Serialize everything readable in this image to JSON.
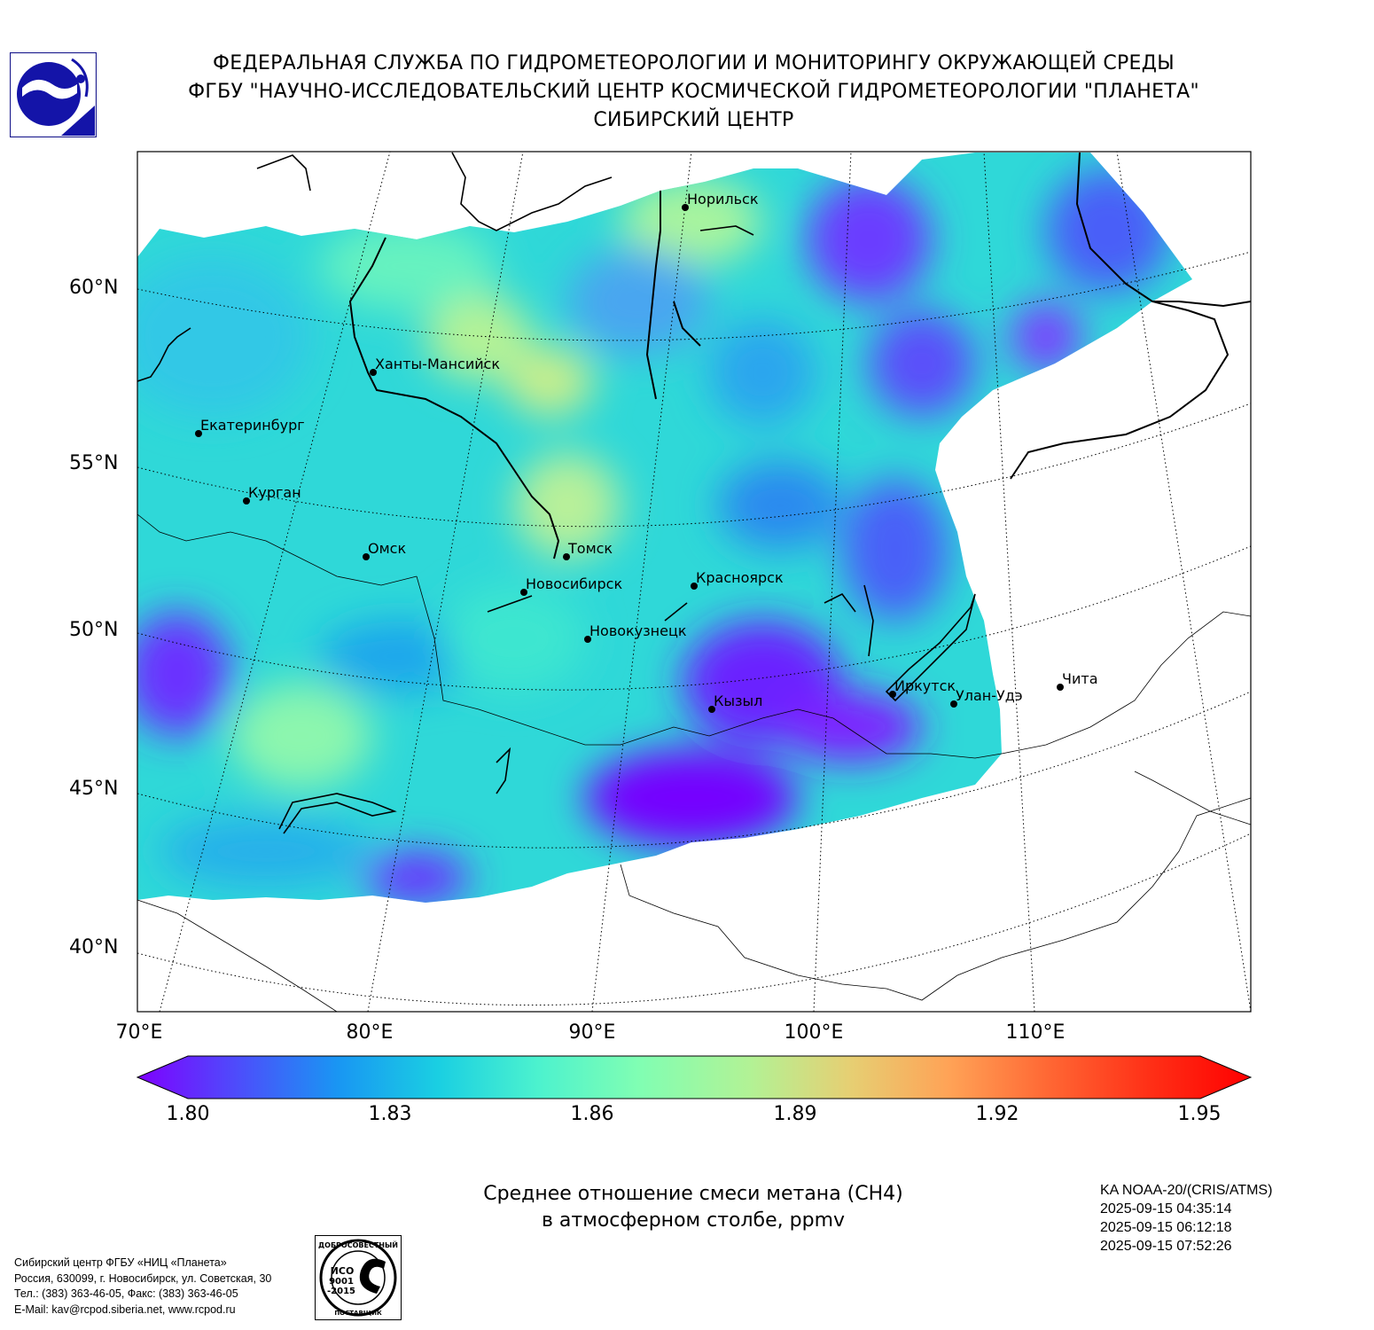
{
  "header": {
    "line1": "ФЕДЕРАЛЬНАЯ СЛУЖБА ПО ГИДРОМЕТЕОРОЛОГИИ И МОНИТОРИНГУ ОКРУЖАЮЩЕЙ СРЕДЫ",
    "line2": "ФГБУ \"НАУЧНО-ИССЛЕДОВАТЕЛЬСКИЙ ЦЕНТР КОСМИЧЕСКОЙ ГИДРОМЕТЕОРОЛОГИИ \"ПЛАНЕТА\"",
    "line3": "СИБИРСКИЙ ЦЕНТР"
  },
  "map": {
    "lat_labels": [
      "60°N",
      "55°N",
      "50°N",
      "45°N",
      "40°N"
    ],
    "lon_labels": [
      "70°E",
      "80°E",
      "90°E",
      "100°E",
      "110°E"
    ],
    "cities": [
      "Норильск",
      "Ханты-Мансийск",
      "Екатеринбург",
      "Курган",
      "Омск",
      "Томск",
      "Новосибирск",
      "Красноярск",
      "Новокузнецк",
      "Иркутск",
      "Улан-Удэ",
      "Чита",
      "Кызыл"
    ]
  },
  "colorbar": {
    "ticks": [
      "1.80",
      "1.83",
      "1.86",
      "1.89",
      "1.92",
      "1.95"
    ],
    "min": 1.8,
    "max": 1.95,
    "colors": [
      "#7f00ff",
      "#4d4dfb",
      "#1996f3",
      "#1acfe2",
      "#4cf2ce",
      "#80feb3",
      "#b2f295",
      "#e6cf73",
      "#ffa256",
      "#ff6633",
      "#ff2f16",
      "#ff0000"
    ]
  },
  "caption": {
    "line1": "Среднее отношение смеси метана (CH4)",
    "line2": "в атмосферном столбе, ppmv"
  },
  "satellite": {
    "name": "KA NOAA-20/(CRIS/ATMS)",
    "times": [
      "2025-09-15 04:35:14",
      "2025-09-15 06:12:18",
      "2025-09-15 07:52:26"
    ]
  },
  "organization": {
    "lines": [
      "Сибирский центр ФГБУ «НИЦ «Планета»",
      "Россия, 630099, г. Новосибирск, ул. Советская, 30",
      "Тел.: (383) 363-46-05, Факс: (383) 363-46-05",
      "E-Mail: kav@rcpod.siberia.net, www.rcpod.ru"
    ]
  },
  "iso_badge": {
    "top": "ДОБРОСОВЕСТНЫЙ",
    "mid1": "ИСО",
    "mid2": "9001",
    "mid3": "-2015",
    "bottom": "ПОСТАВЩИК"
  }
}
